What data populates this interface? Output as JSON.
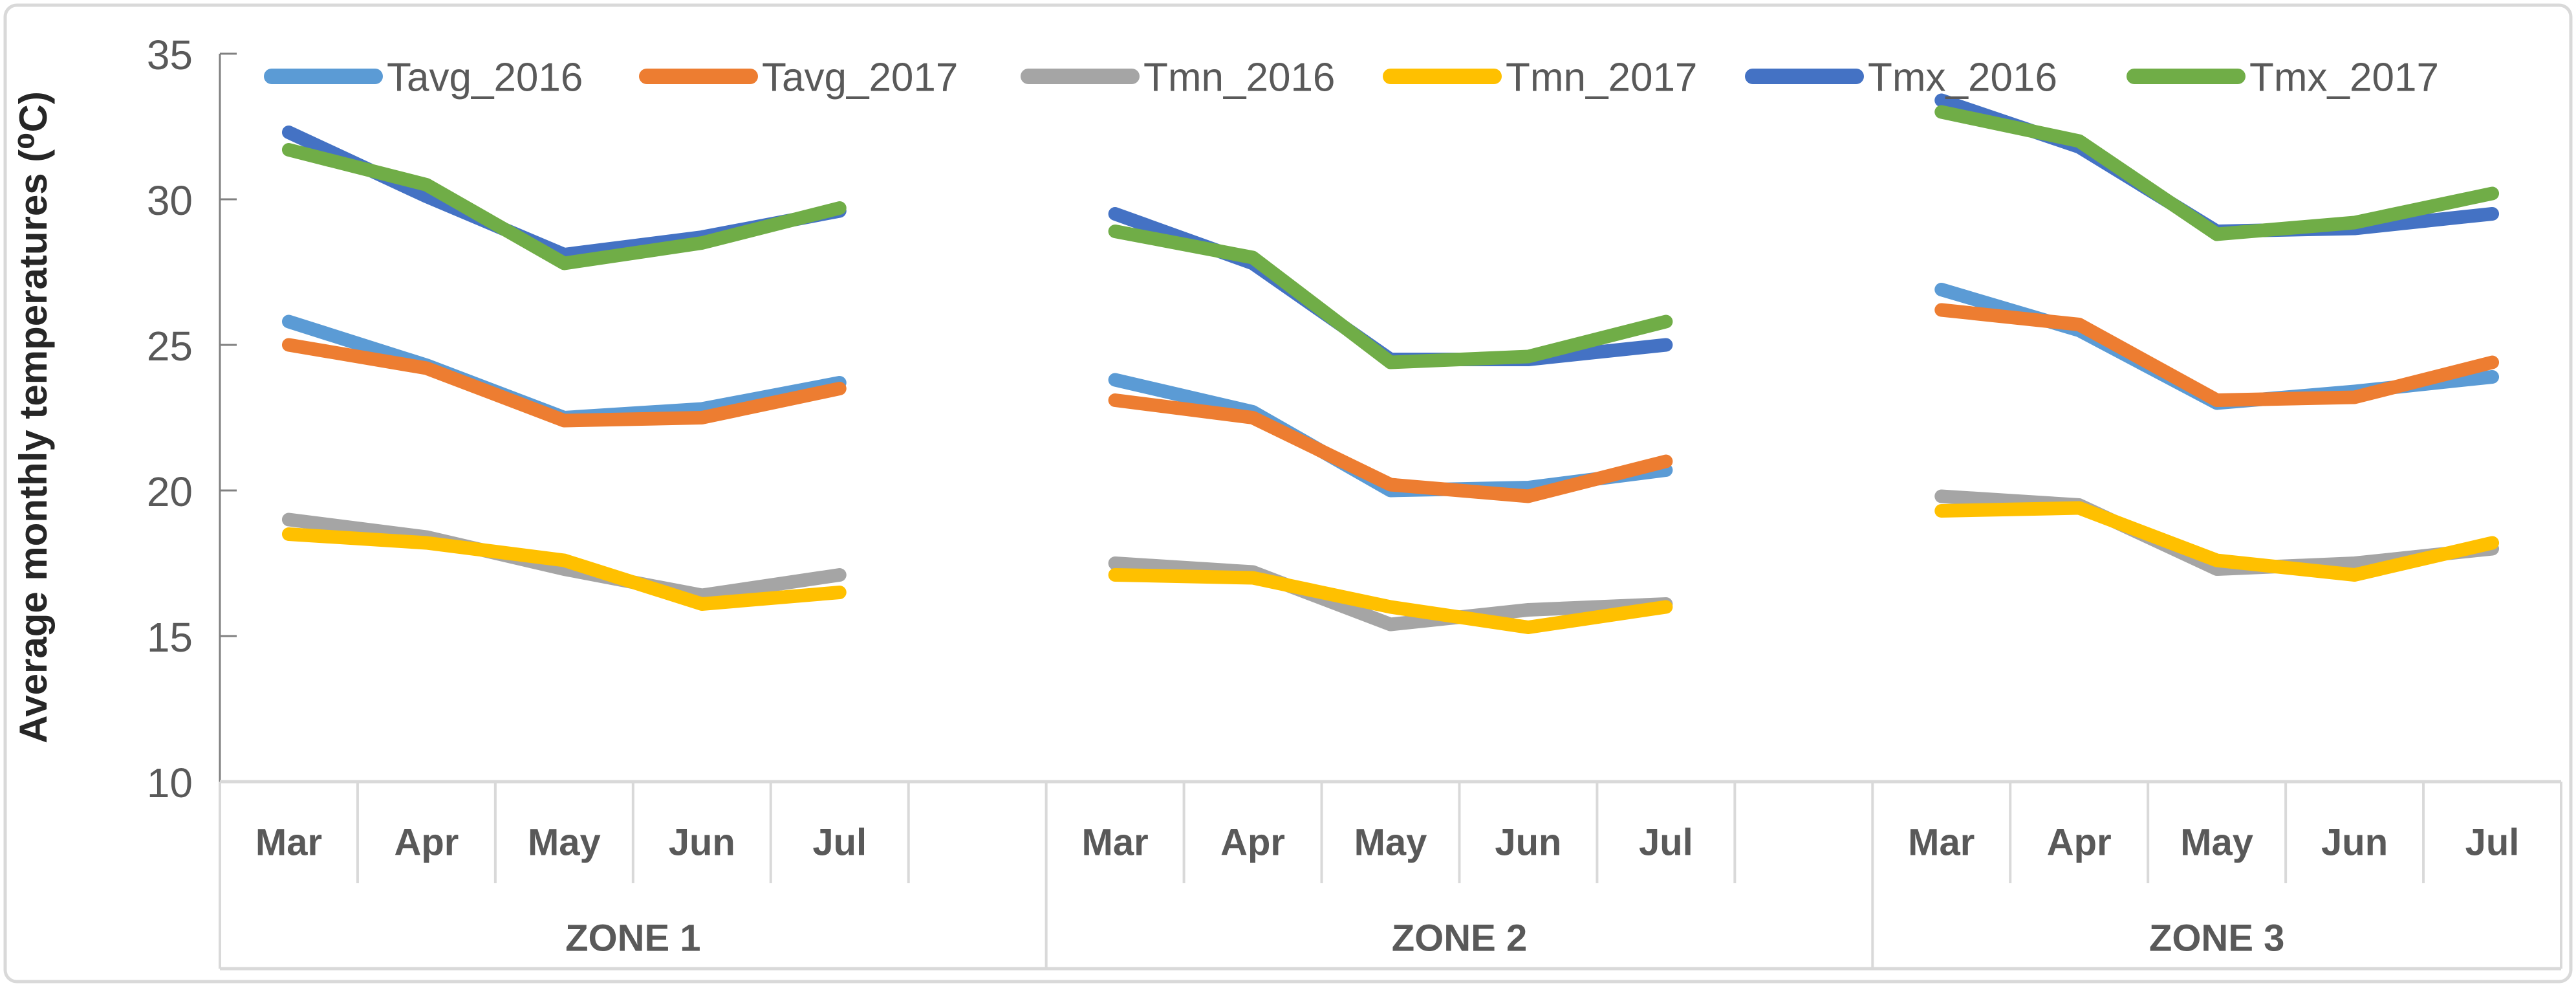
{
  "chart_data": {
    "type": "line",
    "title": "",
    "ylabel": "Average monthly temperatures (⁰C)",
    "xlabel": "",
    "ylim": [
      10,
      35
    ],
    "y_ticks": [
      10,
      15,
      20,
      25,
      30,
      35
    ],
    "grid": "off",
    "legend_position": "top",
    "x_group_labels": [
      "ZONE 1",
      "ZONE 2",
      "ZONE 3"
    ],
    "months": [
      "Mar",
      "Apr",
      "May",
      "Jun",
      "Jul"
    ],
    "series": [
      {
        "name": "Tavg_2016",
        "color": "#5B9BD5",
        "values_by_zone": {
          "ZONE 1": [
            25.8,
            24.3,
            22.5,
            22.8,
            23.7
          ],
          "ZONE 2": [
            23.8,
            22.7,
            20.0,
            20.1,
            20.7
          ],
          "ZONE 3": [
            26.9,
            25.5,
            23.0,
            23.4,
            23.9
          ]
        }
      },
      {
        "name": "Tavg_2017",
        "color": "#ED7D31",
        "values_by_zone": {
          "ZONE 1": [
            25.0,
            24.2,
            22.4,
            22.5,
            23.5
          ],
          "ZONE 2": [
            23.1,
            22.5,
            20.2,
            19.8,
            21.0
          ],
          "ZONE 3": [
            26.2,
            25.7,
            23.1,
            23.2,
            24.4
          ]
        }
      },
      {
        "name": "Tmn_2016",
        "color": "#A5A5A5",
        "values_by_zone": {
          "ZONE 1": [
            19.0,
            18.4,
            17.3,
            16.4,
            17.1
          ],
          "ZONE 2": [
            17.5,
            17.2,
            15.4,
            15.9,
            16.1
          ],
          "ZONE 3": [
            19.8,
            19.5,
            17.3,
            17.5,
            18.0
          ]
        }
      },
      {
        "name": "Tmn_2017",
        "color": "#FFC000",
        "values_by_zone": {
          "ZONE 1": [
            18.5,
            18.2,
            17.6,
            16.1,
            16.5
          ],
          "ZONE 2": [
            17.1,
            17.0,
            16.0,
            15.3,
            16.0
          ],
          "ZONE 3": [
            19.3,
            19.4,
            17.6,
            17.1,
            18.2
          ]
        }
      },
      {
        "name": "Tmx_2016",
        "color": "#4472C4",
        "values_by_zone": {
          "ZONE 1": [
            32.3,
            30.1,
            28.1,
            28.7,
            29.6
          ],
          "ZONE 2": [
            29.5,
            27.8,
            24.5,
            24.5,
            25.0
          ],
          "ZONE 3": [
            33.4,
            31.8,
            28.9,
            29.0,
            29.5
          ]
        }
      },
      {
        "name": "Tmx_2017",
        "color": "#70AD47",
        "values_by_zone": {
          "ZONE 1": [
            31.7,
            30.5,
            27.8,
            28.5,
            29.7
          ],
          "ZONE 2": [
            28.9,
            28.0,
            24.4,
            24.6,
            25.8
          ],
          "ZONE 3": [
            33.0,
            32.0,
            28.8,
            29.2,
            30.2
          ]
        }
      }
    ]
  },
  "colors": {
    "background": "#FFFFFF",
    "chart_border": "#D9D9D9",
    "axis_line": "#808080",
    "band_line": "#D9D9D9",
    "tick_label_text": "#595959",
    "category_text": "#595959",
    "legend_text": "#595959",
    "axis_title_text": "#262626"
  }
}
